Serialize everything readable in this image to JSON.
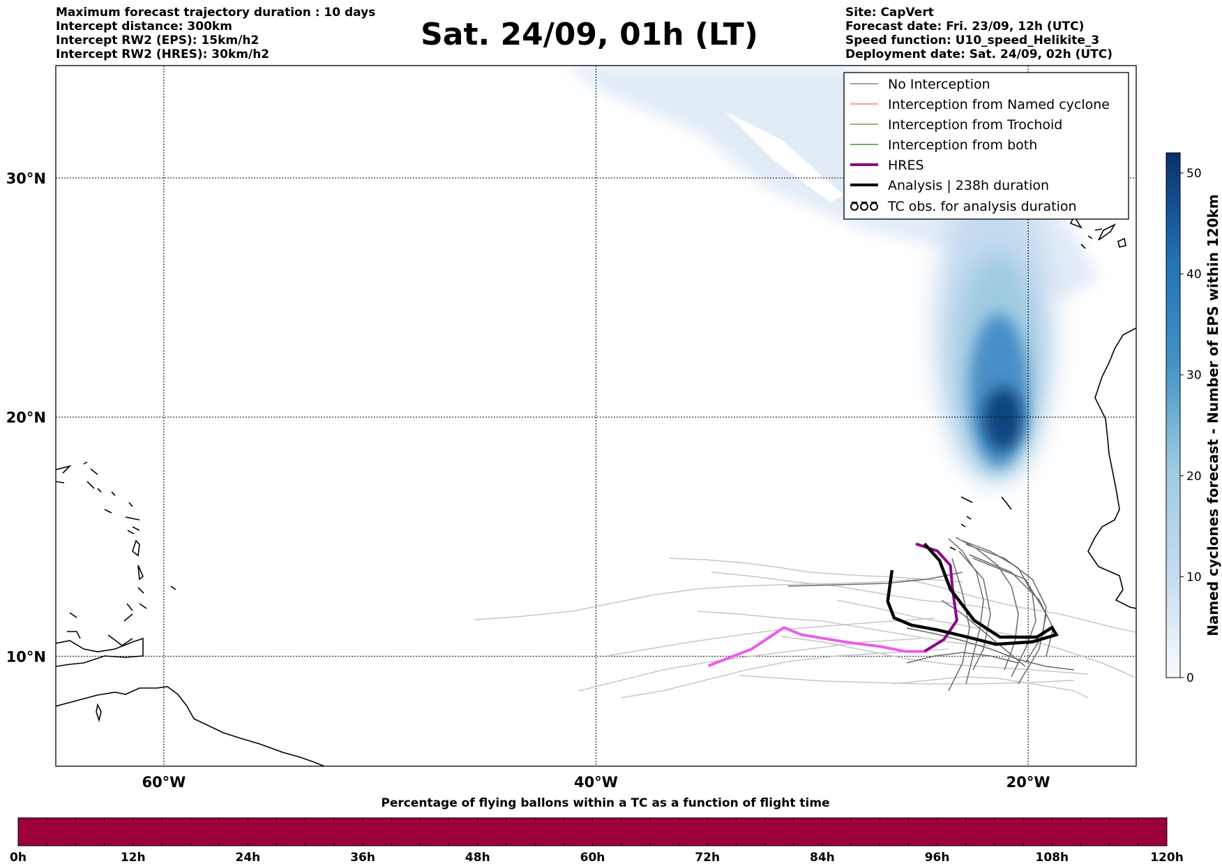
{
  "header_left": [
    "Maximum forecast trajectory duration : 10 days",
    "Intercept distance: 300km",
    "Intercept RW2 (EPS):  15km/h2",
    "Intercept RW2 (HRES): 30km/h2"
  ],
  "title": "Sat. 24/09, 01h (LT)",
  "header_right": [
    "Site: CapVert",
    "Forecast date: Fri. 23/09, 12h (UTC)",
    "Speed function: U10_speed_Helikite_3",
    "Deployment date: Sat. 24/09, 02h (UTC)"
  ],
  "map": {
    "lat_ticks": [
      {
        "value": 30,
        "label": "30°N"
      },
      {
        "value": 20,
        "label": "20°N"
      },
      {
        "value": 10,
        "label": "10°N"
      }
    ],
    "lon_ticks": [
      {
        "value": -60,
        "label": "60°W"
      },
      {
        "value": -40,
        "label": "40°W"
      },
      {
        "value": -20,
        "label": "20°W"
      }
    ],
    "lon_range": [
      -65,
      -15
    ],
    "lat_range": [
      5.4,
      34.7
    ],
    "gridlines": true,
    "density_color": "#08306b",
    "hres_color": "#e85fe8",
    "hres_legend_color": "#8b0a8b",
    "no_interception_color": "#808080",
    "analysis_color": "#000000"
  },
  "legend": {
    "placement": "top-right",
    "items": [
      {
        "label": "No Interception",
        "color": "#808080",
        "style": "thin"
      },
      {
        "label": "Interception from Named cyclone",
        "color": "#ff7f50",
        "style": "thin"
      },
      {
        "label": "Interception from Trochoid",
        "color": "#9b8a3c",
        "style": "thin"
      },
      {
        "label": "Interception from both",
        "color": "#2ca02c",
        "style": "thin"
      },
      {
        "label": "HRES",
        "color": "#8b0a8b",
        "style": "thick"
      },
      {
        "label": "Analysis | 238h duration",
        "color": "#000000",
        "style": "thick"
      },
      {
        "label": "TC obs. for analysis duration",
        "color": "#000000",
        "style": "symbol"
      }
    ]
  },
  "colorbar_right": {
    "label": "Named cyclones forecast - Number of EPS within 120km",
    "range": [
      0,
      52
    ],
    "ticks": [
      0,
      10,
      20,
      30,
      40,
      50
    ]
  },
  "bottom_bar": {
    "title": "Percentage of flying ballons within a TC as a function of flight time",
    "color": "#9c003c",
    "ticks": [
      "0h",
      "12h",
      "24h",
      "36h",
      "48h",
      "60h",
      "72h",
      "84h",
      "96h",
      "108h",
      "120h"
    ]
  },
  "tracks": {
    "hres": [
      [
        -34.8,
        9.6
      ],
      [
        -32.8,
        10.3
      ],
      [
        -31.3,
        11.2
      ],
      [
        -30.5,
        10.9
      ],
      [
        -28.5,
        10.6
      ],
      [
        -26.8,
        10.4
      ],
      [
        -25.7,
        10.2
      ],
      [
        -24.8,
        10.2
      ],
      [
        -23.9,
        10.7
      ],
      [
        -23.3,
        11.5
      ]
    ],
    "hres_dark": [
      [
        -24.8,
        10.2
      ],
      [
        -23.9,
        10.7
      ],
      [
        -23.3,
        11.5
      ],
      [
        -23.5,
        12.8
      ],
      [
        -23.6,
        13.8
      ],
      [
        -24.2,
        14.4
      ],
      [
        -25.2,
        14.7
      ]
    ],
    "analysis": [
      [
        -24.8,
        14.7
      ],
      [
        -24.1,
        14.0
      ],
      [
        -23.6,
        12.8
      ],
      [
        -22.5,
        11.5
      ],
      [
        -21.3,
        10.8
      ],
      [
        -19.6,
        10.8
      ],
      [
        -18.9,
        11.2
      ],
      [
        -18.7,
        10.9
      ],
      [
        -19.8,
        10.6
      ],
      [
        -21.5,
        10.5
      ],
      [
        -22.8,
        10.8
      ],
      [
        -24.2,
        11.1
      ],
      [
        -25.4,
        11.3
      ],
      [
        -26.2,
        11.6
      ],
      [
        -26.5,
        12.3
      ],
      [
        -26.3,
        13.6
      ]
    ]
  }
}
